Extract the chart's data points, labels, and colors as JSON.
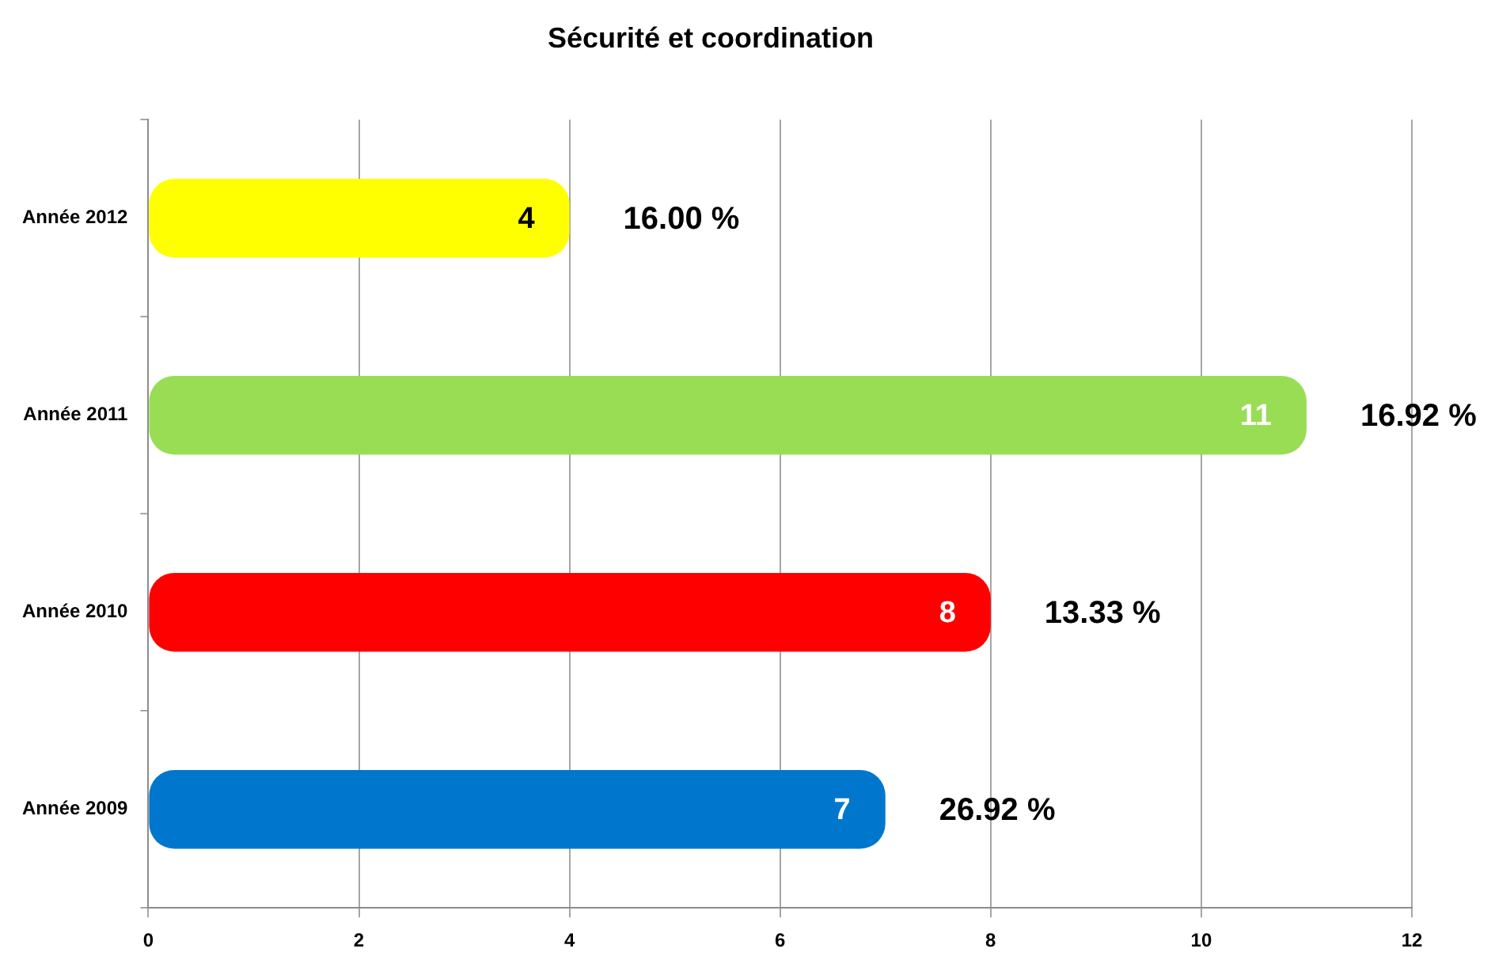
{
  "chart_data": {
    "type": "bar",
    "orientation": "horizontal",
    "title": "Sécurité et coordination",
    "categories": [
      "Année 2012",
      "Année 2011",
      "Année 2010",
      "Année 2009"
    ],
    "values": [
      4,
      11,
      8,
      7
    ],
    "colors": [
      "#ffff00",
      "#99dd55",
      "#ff0000",
      "#0077cc"
    ],
    "xlim": [
      0,
      12
    ],
    "xticks": [
      0,
      2,
      4,
      6,
      8,
      10,
      12
    ],
    "grid": "x",
    "data_labels": true,
    "annotations": [
      {
        "text": "16.00 %",
        "x": 4,
        "y": "Année 2012"
      },
      {
        "text": "16.92 %",
        "x": 11,
        "y": "Année 2011"
      },
      {
        "text": "13.33 %",
        "x": 8,
        "y": "Année 2010"
      },
      {
        "text": "26.92 %",
        "x": 7,
        "y": "Année 2009"
      }
    ]
  }
}
